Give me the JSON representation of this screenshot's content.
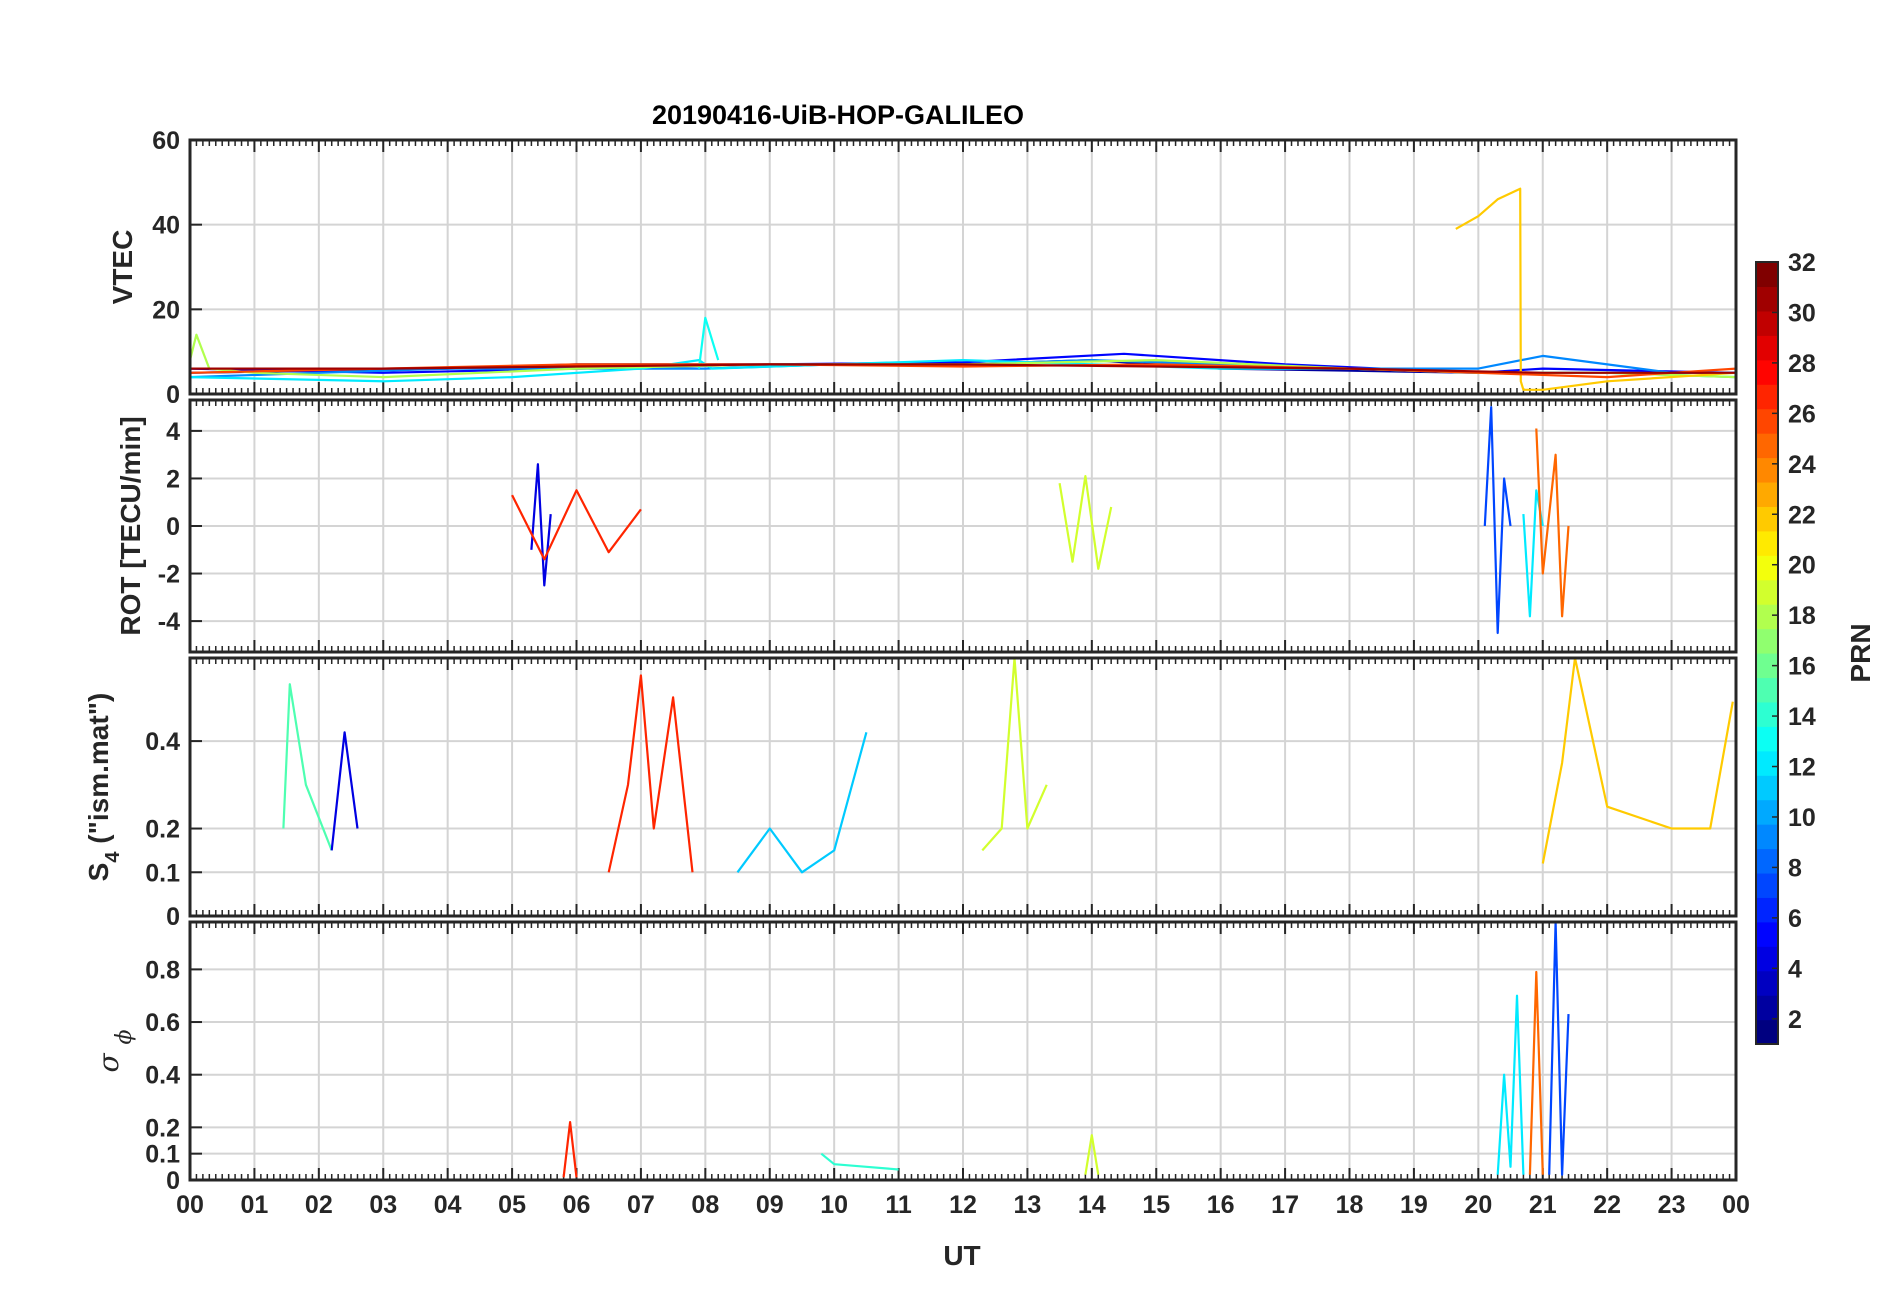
{
  "chart_data": {
    "type": "line",
    "title": "20190416-UiB-HOP-GALILEO",
    "xlabel": "UT",
    "x_ticks": [
      "00",
      "01",
      "02",
      "03",
      "04",
      "05",
      "06",
      "07",
      "08",
      "09",
      "10",
      "11",
      "12",
      "13",
      "14",
      "15",
      "16",
      "17",
      "18",
      "19",
      "20",
      "21",
      "22",
      "23",
      "00"
    ],
    "x_range_hours": [
      0,
      24
    ],
    "grid": true,
    "colorbar": {
      "label": "PRN",
      "colormap": "jet",
      "range": [
        1,
        32
      ],
      "ticks": [
        "2",
        "4",
        "6",
        "8",
        "10",
        "12",
        "14",
        "16",
        "18",
        "20",
        "22",
        "24",
        "26",
        "28",
        "30",
        "32"
      ],
      "placement": "right"
    },
    "panels": [
      {
        "name": "vtec",
        "ylabel": "VTEC",
        "ylim": [
          0,
          60
        ],
        "yticks": [
          "0",
          "20",
          "40",
          "60"
        ],
        "series": [
          {
            "prn": 2,
            "x": [
              0,
              2,
              4,
              6,
              8,
              10,
              12,
              14,
              16,
              18,
              20,
              22,
              24
            ],
            "y": [
              5,
              5.5,
              6,
              7,
              7,
              7,
              7,
              8,
              6,
              5.5,
              5,
              5,
              5
            ]
          },
          {
            "prn": 5,
            "x": [
              0,
              3,
              6,
              9,
              12,
              14.5,
              17,
              20,
              21,
              24
            ],
            "y": [
              6,
              5,
              6,
              7,
              7.5,
              9.5,
              7,
              5,
              6,
              5
            ]
          },
          {
            "prn": 9,
            "x": [
              0,
              2,
              4,
              6,
              8,
              10,
              12,
              14,
              16,
              18,
              20,
              21,
              23,
              24
            ],
            "y": [
              4,
              5,
              6,
              6,
              6,
              7,
              7,
              8,
              7,
              6,
              6,
              9,
              5,
              5
            ]
          },
          {
            "prn": 12,
            "x": [
              0,
              3,
              5,
              7,
              7.9,
              8.1,
              10,
              12,
              14,
              16,
              18,
              20,
              22,
              24
            ],
            "y": [
              4,
              3,
              4,
              6,
              8,
              6,
              7,
              8,
              7,
              6,
              6,
              5,
              5,
              4
            ]
          },
          {
            "prn": 13,
            "x": [
              7.9,
              8.0,
              8.2
            ],
            "y": [
              6,
              18,
              8
            ]
          },
          {
            "prn": 18,
            "x": [
              0,
              0.1,
              0.3,
              1,
              3,
              6,
              9,
              12,
              15,
              18,
              20,
              22,
              24
            ],
            "y": [
              8,
              14,
              6,
              5,
              4,
              6,
              7,
              7,
              8,
              6,
              5,
              5,
              4
            ]
          },
          {
            "prn": 22,
            "x": [
              19.65,
              20,
              20.3,
              20.65,
              20.66,
              20.7,
              21,
              22,
              24
            ],
            "y": [
              39,
              42,
              46,
              48.5,
              3,
              1,
              1,
              3,
              5
            ]
          },
          {
            "prn": 26,
            "x": [
              0,
              3,
              6,
              9,
              12,
              15,
              18,
              20,
              22,
              24
            ],
            "y": [
              5,
              6,
              7,
              7,
              6.5,
              7,
              6,
              5,
              4,
              6
            ]
          },
          {
            "prn": 31,
            "x": [
              0,
              3,
              6,
              9,
              12,
              15,
              18,
              21,
              24
            ],
            "y": [
              6,
              6,
              6.5,
              7,
              7,
              6.5,
              6,
              5,
              5
            ]
          }
        ]
      },
      {
        "name": "rot",
        "ylabel": "ROT [TECU/min]",
        "ylim": [
          -5.3,
          5.3
        ],
        "yticks": [
          "-4",
          "-2",
          "0",
          "2",
          "4"
        ],
        "series": [
          {
            "prn": 4,
            "x": [
              5.3,
              5.4,
              5.5,
              5.6
            ],
            "y": [
              -1,
              2.6,
              -2.5,
              0.5
            ]
          },
          {
            "prn": 7,
            "x": [
              20.1,
              20.2,
              20.3,
              20.4,
              20.5
            ],
            "y": [
              0,
              5,
              -4.5,
              2,
              0
            ]
          },
          {
            "prn": 12,
            "x": [
              20.7,
              20.8,
              20.9,
              21.0
            ],
            "y": [
              0.5,
              -3.8,
              1.5,
              0
            ]
          },
          {
            "prn": 19,
            "x": [
              13.5,
              13.7,
              13.9,
              14.1,
              14.3
            ],
            "y": [
              1.8,
              -1.5,
              2.1,
              -1.8,
              0.8
            ]
          },
          {
            "prn": 25,
            "x": [
              20.9,
              21.0,
              21.2,
              21.3,
              21.4
            ],
            "y": [
              4.1,
              -2,
              3,
              -3.8,
              0
            ]
          },
          {
            "prn": 27,
            "x": [
              5,
              5.5,
              6,
              6.5,
              7
            ],
            "y": [
              1.3,
              -1.4,
              1.5,
              -1.1,
              0.7
            ]
          }
        ]
      },
      {
        "name": "s4",
        "ylabel": "S4 (\"ism.mat\")",
        "ylim": [
          0,
          0.59
        ],
        "yticks": [
          "0",
          "0.1",
          "0.2",
          "0.4"
        ],
        "series": [
          {
            "prn": 27,
            "x": [
              6.5,
              6.8,
              7.0,
              7.2,
              7.5,
              7.8
            ],
            "y": [
              0.1,
              0.3,
              0.55,
              0.2,
              0.5,
              0.1
            ]
          },
          {
            "prn": 22,
            "x": [
              21,
              21.3,
              21.5,
              22,
              23,
              23.6,
              23.95
            ],
            "y": [
              0.12,
              0.35,
              0.59,
              0.25,
              0.2,
              0.2,
              0.49
            ]
          },
          {
            "prn": 19,
            "x": [
              12.3,
              12.6,
              12.8,
              13.0,
              13.3
            ],
            "y": [
              0.15,
              0.2,
              0.59,
              0.2,
              0.3
            ]
          },
          {
            "prn": 15,
            "x": [
              1.45,
              1.55,
              1.8,
              2.2
            ],
            "y": [
              0.2,
              0.53,
              0.3,
              0.15
            ]
          },
          {
            "prn": 4,
            "x": [
              2.2,
              2.4,
              2.6
            ],
            "y": [
              0.15,
              0.42,
              0.2
            ]
          },
          {
            "prn": 11,
            "x": [
              8.5,
              9.0,
              9.5,
              10.0,
              10.5
            ],
            "y": [
              0.1,
              0.2,
              0.1,
              0.15,
              0.42
            ]
          }
        ]
      },
      {
        "name": "sigma_phi",
        "ylabel": "σ ϕ",
        "ylim": [
          0,
          0.98
        ],
        "yticks": [
          "0",
          "0.1",
          "0.2",
          "0.4",
          "0.6",
          "0.8"
        ],
        "series": [
          {
            "prn": 12,
            "x": [
              20.3,
              20.4,
              20.5,
              20.6,
              20.7
            ],
            "y": [
              0.02,
              0.4,
              0.05,
              0.7,
              0.02
            ]
          },
          {
            "prn": 25,
            "x": [
              20.8,
              20.9,
              21.0
            ],
            "y": [
              0.02,
              0.79,
              0.02
            ]
          },
          {
            "prn": 7,
            "x": [
              21.1,
              21.2,
              21.3,
              21.4
            ],
            "y": [
              0.02,
              0.98,
              0.02,
              0.63
            ]
          },
          {
            "prn": 27,
            "x": [
              5.8,
              5.9,
              6.0
            ],
            "y": [
              0.01,
              0.22,
              0.01
            ]
          },
          {
            "prn": 14,
            "x": [
              9.8,
              10.0,
              10.5,
              11.0
            ],
            "y": [
              0.1,
              0.06,
              0.05,
              0.04
            ]
          },
          {
            "prn": 19,
            "x": [
              13.9,
              14.0,
              14.1
            ],
            "y": [
              0.02,
              0.17,
              0.02
            ]
          }
        ]
      }
    ]
  }
}
